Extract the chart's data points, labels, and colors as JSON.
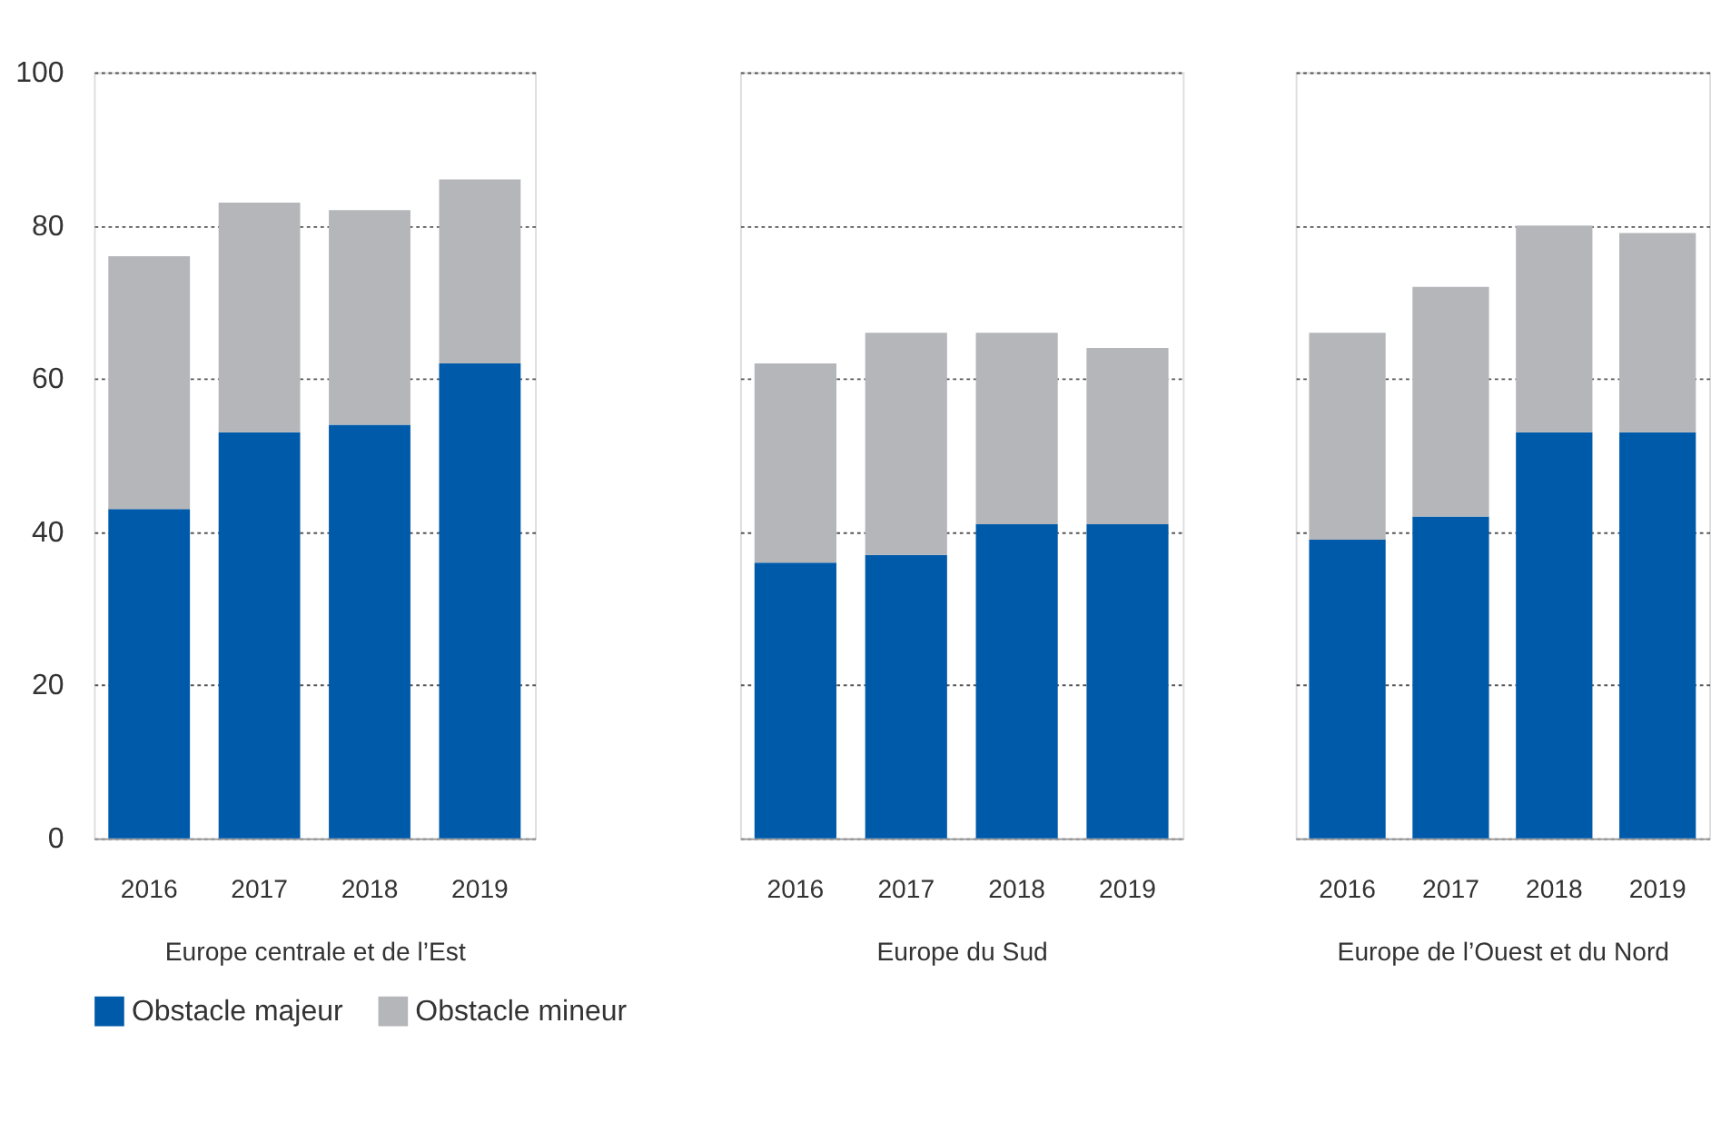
{
  "chart_data": [
    {
      "type": "bar",
      "stacked": true,
      "categories": [
        "2016",
        "2017",
        "2018",
        "2019"
      ],
      "xlabel": "Europe centrale et de l’Est",
      "ylim": [
        0,
        100
      ],
      "yticks": [
        0,
        20,
        40,
        60,
        80,
        100
      ],
      "grid": "y",
      "legend": "bottom",
      "series": [
        {
          "name": "Obstacle majeur",
          "color": "#005aaa",
          "values": [
            43,
            53,
            54,
            62
          ]
        },
        {
          "name": "Obstacle mineur",
          "color": "#b5b6ba",
          "values": [
            33,
            30,
            28,
            24
          ]
        }
      ]
    },
    {
      "type": "bar",
      "stacked": true,
      "categories": [
        "2016",
        "2017",
        "2018",
        "2019"
      ],
      "xlabel": "Europe du Sud",
      "ylim": [
        0,
        100
      ],
      "yticks": [
        0,
        20,
        40,
        60,
        80,
        100
      ],
      "grid": "y",
      "tick_labels": "x",
      "series": [
        {
          "color": "#005aaa",
          "values": [
            36,
            37,
            41,
            41
          ]
        },
        {
          "color": "#b5b6ba",
          "values": [
            26,
            29,
            25,
            23
          ]
        }
      ]
    },
    {
      "type": "bar",
      "stacked": true,
      "categories": [
        "2016",
        "2017",
        "2018",
        "2019"
      ],
      "xlabel": "Europe de l’Ouest et du Nord",
      "ylim": [
        0,
        100
      ],
      "yticks": [
        0,
        20,
        40,
        60,
        80,
        100
      ],
      "grid": "y",
      "tick_labels": "x",
      "series": [
        {
          "color": "#005aaa",
          "values": [
            39,
            42,
            53,
            53
          ]
        },
        {
          "color": "#b5b6ba",
          "values": [
            27,
            30,
            27,
            26
          ]
        }
      ]
    }
  ]
}
